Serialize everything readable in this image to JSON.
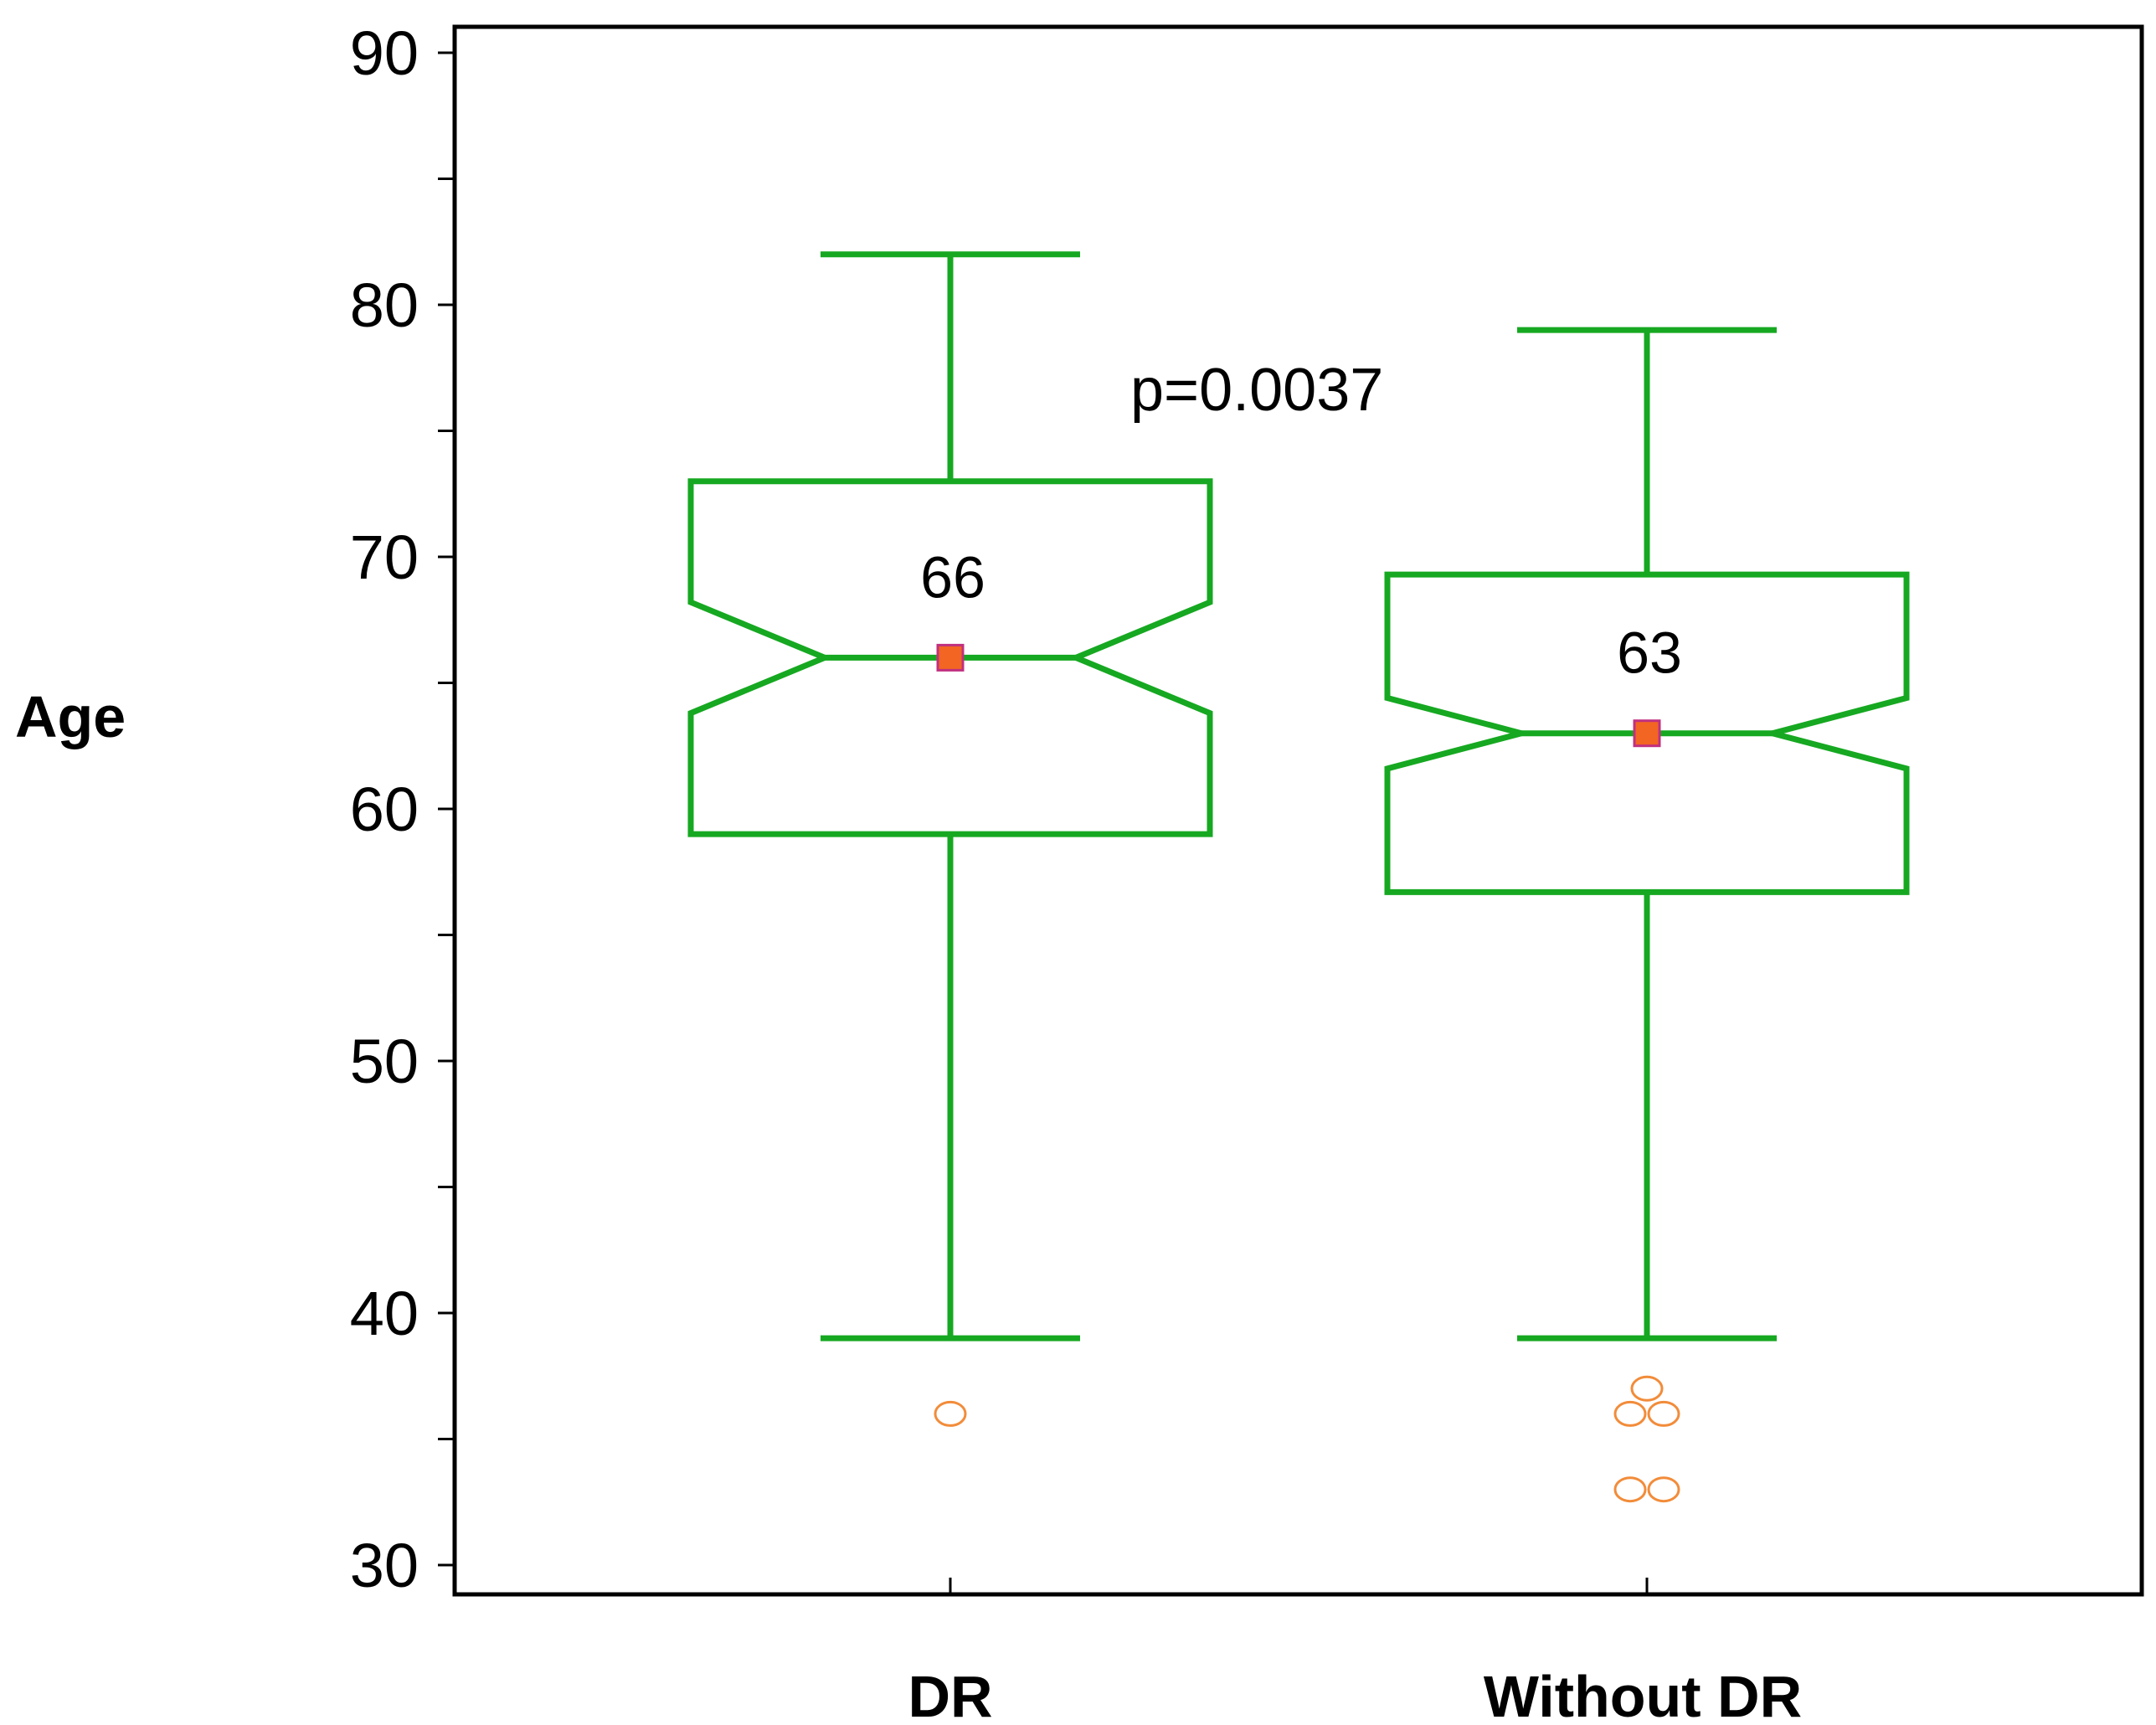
{
  "chart_data": {
    "type": "box",
    "ylabel": "Age",
    "ylim": [
      30,
      90
    ],
    "yticks": [
      30,
      40,
      50,
      60,
      70,
      80,
      90
    ],
    "annotation": "p=0.0037",
    "colors": {
      "box": "#16A821",
      "median_marker": "#F26522",
      "outlier": "#F28C3A",
      "axis": "#000000"
    },
    "categories": [
      "DR",
      "Without DR"
    ],
    "boxes": [
      {
        "name": "DR",
        "whisker_low": 39,
        "q1": 59,
        "median": 66,
        "q3": 73,
        "whisker_high": 82,
        "notch_low": 63.8,
        "notch_high": 68.2,
        "median_label": "66",
        "outliers": [
          36
        ]
      },
      {
        "name": "Without DR",
        "whisker_low": 39,
        "q1": 56.7,
        "median": 63,
        "q3": 69.3,
        "whisker_high": 79,
        "notch_low": 61.6,
        "notch_high": 64.4,
        "median_label": "63",
        "outliers": [
          37,
          36,
          36,
          33,
          33
        ]
      }
    ]
  }
}
